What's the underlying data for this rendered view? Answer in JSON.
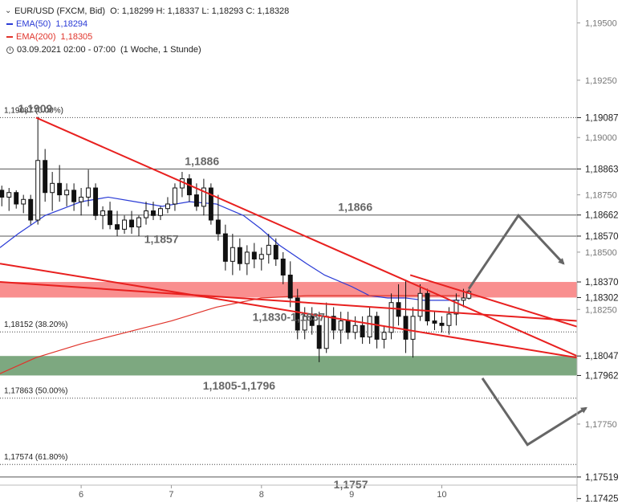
{
  "legend": {
    "symbol": "EUR/USD (FXCM, Bid)",
    "ohlc": "O: 1,18299  H: 1,18337  L: 1,18293  C: 1,18328",
    "ema50_label": "EMA(50)",
    "ema50_value": "1,18294",
    "ema200_label": "EMA(200)",
    "ema200_value": "1,18305",
    "period": "03.09.2021 02:00 - 07:00",
    "interval": "(1 Woche, 1 Stunde)"
  },
  "colors": {
    "ema50": "#2a3bd6",
    "ema200": "#e0342b",
    "trendline": "#e8201f",
    "resistance_zone": "#f87b7b",
    "support_zone": "#6f9e72",
    "arrow": "#666666",
    "candle": "#111111"
  },
  "chart_data": {
    "type": "candlestick",
    "instrument": "EUR/USD",
    "y_axis": {
      "range": [
        1.1741,
        1.196
      ],
      "ticks": [
        "1,19500",
        "1,19250",
        "1,19000",
        "1,18750",
        "1,18500",
        "1,18250",
        "1,17750"
      ]
    },
    "x_axis": {
      "range": [
        5.1,
        11.5
      ],
      "ticks": [
        {
          "x": 6,
          "label": "6"
        },
        {
          "x": 7,
          "label": "7"
        },
        {
          "x": 8,
          "label": "8"
        },
        {
          "x": 9,
          "label": "9"
        },
        {
          "x": 10,
          "label": "10"
        }
      ]
    },
    "price_markers": [
      {
        "value": 1.19087,
        "label": "1,19087",
        "style": "dark"
      },
      {
        "value": 1.18863,
        "label": "1,18863",
        "style": "dark"
      },
      {
        "value": 1.18662,
        "label": "1,18662",
        "style": "dark"
      },
      {
        "value": 1.1857,
        "label": "1,18570",
        "style": "dark"
      },
      {
        "value": 1.1837,
        "label": "1,18370",
        "style": "dark"
      },
      {
        "value": 1.18302,
        "label": "1,18302",
        "style": "dark"
      },
      {
        "value": 1.18047,
        "label": "1,18047",
        "style": "dark"
      },
      {
        "value": 1.17962,
        "label": "1,17962",
        "style": "dark"
      },
      {
        "value": 1.17519,
        "label": "1,17519",
        "style": "dark"
      },
      {
        "value": 1.17425,
        "label": "1,17425",
        "style": "dark"
      }
    ],
    "horizontal_lines": [
      {
        "value": 1.19087,
        "style": "dotted"
      },
      {
        "value": 1.18863,
        "style": "solid"
      },
      {
        "value": 1.18662,
        "style": "solid"
      },
      {
        "value": 1.1857,
        "style": "solid"
      },
      {
        "value": 1.18152,
        "style": "dotted"
      },
      {
        "value": 1.17863,
        "style": "dotted"
      },
      {
        "value": 1.17574,
        "style": "dotted"
      },
      {
        "value": 1.17519,
        "style": "solid"
      },
      {
        "value": 1.17425,
        "style": "solid"
      }
    ],
    "fib_labels": [
      {
        "value": 1.19087,
        "text": "1,19087 (0.00%)"
      },
      {
        "value": 1.18152,
        "text": "1,18152 (38.20%)"
      },
      {
        "value": 1.17863,
        "text": "1,17863 (50.00%)"
      },
      {
        "value": 1.17574,
        "text": "1,17574 (61.80%)"
      }
    ],
    "zones": [
      {
        "name": "resistance",
        "from": 1.18302,
        "to": 1.1837
      },
      {
        "name": "support",
        "from": 1.17962,
        "to": 1.18047
      }
    ],
    "annotations": [
      {
        "text": "1,1909",
        "x": 5.3,
        "y": 1.1911
      },
      {
        "text": "1,1886",
        "x": 7.15,
        "y": 1.1888
      },
      {
        "text": "1,1866",
        "x": 8.85,
        "y": 1.1868
      },
      {
        "text": "1,1857",
        "x": 6.7,
        "y": 1.1854
      },
      {
        "text": "1,1830-1,1837",
        "x": 7.9,
        "y": 1.182
      },
      {
        "text": "1,1805-1,1796",
        "x": 7.35,
        "y": 1.179
      },
      {
        "text": "1,1757",
        "x": 8.8,
        "y": 1.1747
      }
    ],
    "trendlines": [
      {
        "from": [
          5.5,
          1.19087
        ],
        "to": [
          11.5,
          1.18047
        ]
      },
      {
        "from": [
          5.1,
          1.1845
        ],
        "to": [
          11.5,
          1.1804
        ]
      },
      {
        "from": [
          5.1,
          1.1837
        ],
        "to": [
          11.5,
          1.182
        ]
      },
      {
        "from": [
          9.65,
          1.184
        ],
        "to": [
          11.5,
          1.18175
        ]
      }
    ],
    "scenario_arrows": [
      {
        "points": [
          [
            10.3,
            1.1834
          ],
          [
            10.85,
            1.1866
          ],
          [
            11.35,
            1.1845
          ]
        ]
      },
      {
        "points": [
          [
            10.45,
            1.1795
          ],
          [
            10.95,
            1.1766
          ],
          [
            11.6,
            1.1782
          ]
        ]
      }
    ],
    "series": [
      {
        "name": "EMA(50)",
        "x": [
          5.1,
          5.3,
          5.6,
          6.0,
          6.3,
          6.6,
          6.9,
          7.2,
          7.5,
          7.8,
          8.0,
          8.2,
          8.5,
          8.7,
          9.0,
          9.2,
          9.4,
          9.6,
          9.8,
          10.0,
          10.2
        ],
        "y": [
          1.1852,
          1.1858,
          1.1866,
          1.1872,
          1.1874,
          1.1872,
          1.187,
          1.1872,
          1.1871,
          1.1866,
          1.186,
          1.1853,
          1.1845,
          1.184,
          1.1835,
          1.1831,
          1.183,
          1.183,
          1.1829,
          1.1829,
          1.1829
        ]
      },
      {
        "name": "EMA(200)",
        "x": [
          5.1,
          5.5,
          6.0,
          6.5,
          7.0,
          7.5,
          8.0,
          8.5,
          9.0,
          9.5,
          10.0,
          10.2
        ],
        "y": [
          1.1797,
          1.1804,
          1.181,
          1.1815,
          1.182,
          1.1826,
          1.183,
          1.1831,
          1.1831,
          1.1831,
          1.1831,
          1.1831
        ]
      }
    ],
    "candles": [
      {
        "x": 5.12,
        "o": 1.1877,
        "h": 1.1879,
        "l": 1.187,
        "c": 1.1874
      },
      {
        "x": 5.2,
        "o": 1.1874,
        "h": 1.1878,
        "l": 1.1868,
        "c": 1.1876
      },
      {
        "x": 5.28,
        "o": 1.1876,
        "h": 1.1877,
        "l": 1.1869,
        "c": 1.1871
      },
      {
        "x": 5.36,
        "o": 1.1871,
        "h": 1.1875,
        "l": 1.1867,
        "c": 1.1873
      },
      {
        "x": 5.44,
        "o": 1.1873,
        "h": 1.1875,
        "l": 1.1862,
        "c": 1.1864
      },
      {
        "x": 5.52,
        "o": 1.1864,
        "h": 1.1909,
        "l": 1.1862,
        "c": 1.189
      },
      {
        "x": 5.6,
        "o": 1.189,
        "h": 1.1895,
        "l": 1.1872,
        "c": 1.1876
      },
      {
        "x": 5.68,
        "o": 1.1876,
        "h": 1.1885,
        "l": 1.1868,
        "c": 1.188
      },
      {
        "x": 5.76,
        "o": 1.188,
        "h": 1.1888,
        "l": 1.1872,
        "c": 1.1875
      },
      {
        "x": 5.84,
        "o": 1.1875,
        "h": 1.188,
        "l": 1.187,
        "c": 1.1877
      },
      {
        "x": 5.92,
        "o": 1.1877,
        "h": 1.188,
        "l": 1.1868,
        "c": 1.1872
      },
      {
        "x": 6.0,
        "o": 1.1872,
        "h": 1.1878,
        "l": 1.1866,
        "c": 1.1874
      },
      {
        "x": 6.08,
        "o": 1.1874,
        "h": 1.1886,
        "l": 1.187,
        "c": 1.1878
      },
      {
        "x": 6.16,
        "o": 1.1878,
        "h": 1.188,
        "l": 1.1864,
        "c": 1.1866
      },
      {
        "x": 6.24,
        "o": 1.1866,
        "h": 1.187,
        "l": 1.186,
        "c": 1.1868
      },
      {
        "x": 6.32,
        "o": 1.1868,
        "h": 1.1872,
        "l": 1.186,
        "c": 1.1862
      },
      {
        "x": 6.4,
        "o": 1.1862,
        "h": 1.1868,
        "l": 1.1857,
        "c": 1.186
      },
      {
        "x": 6.48,
        "o": 1.186,
        "h": 1.1866,
        "l": 1.1858,
        "c": 1.1864
      },
      {
        "x": 6.56,
        "o": 1.1864,
        "h": 1.1868,
        "l": 1.1858,
        "c": 1.1861
      },
      {
        "x": 6.64,
        "o": 1.1861,
        "h": 1.1866,
        "l": 1.1857,
        "c": 1.1865
      },
      {
        "x": 6.72,
        "o": 1.1865,
        "h": 1.1872,
        "l": 1.1862,
        "c": 1.1868
      },
      {
        "x": 6.8,
        "o": 1.1868,
        "h": 1.1872,
        "l": 1.1864,
        "c": 1.1866
      },
      {
        "x": 6.88,
        "o": 1.1866,
        "h": 1.187,
        "l": 1.1864,
        "c": 1.1869
      },
      {
        "x": 6.96,
        "o": 1.1869,
        "h": 1.1874,
        "l": 1.1867,
        "c": 1.1871
      },
      {
        "x": 7.04,
        "o": 1.1871,
        "h": 1.188,
        "l": 1.1868,
        "c": 1.1878
      },
      {
        "x": 7.12,
        "o": 1.1878,
        "h": 1.1885,
        "l": 1.1874,
        "c": 1.1882
      },
      {
        "x": 7.2,
        "o": 1.1882,
        "h": 1.1884,
        "l": 1.1872,
        "c": 1.1875
      },
      {
        "x": 7.28,
        "o": 1.1875,
        "h": 1.188,
        "l": 1.1868,
        "c": 1.187
      },
      {
        "x": 7.36,
        "o": 1.187,
        "h": 1.1882,
        "l": 1.1866,
        "c": 1.1878
      },
      {
        "x": 7.44,
        "o": 1.1878,
        "h": 1.188,
        "l": 1.1862,
        "c": 1.1864
      },
      {
        "x": 7.52,
        "o": 1.1864,
        "h": 1.1875,
        "l": 1.1855,
        "c": 1.1858
      },
      {
        "x": 7.6,
        "o": 1.1858,
        "h": 1.1862,
        "l": 1.1842,
        "c": 1.1846
      },
      {
        "x": 7.68,
        "o": 1.1846,
        "h": 1.1858,
        "l": 1.184,
        "c": 1.1852
      },
      {
        "x": 7.76,
        "o": 1.1852,
        "h": 1.1856,
        "l": 1.1842,
        "c": 1.1845
      },
      {
        "x": 7.84,
        "o": 1.1845,
        "h": 1.1853,
        "l": 1.184,
        "c": 1.185
      },
      {
        "x": 7.92,
        "o": 1.185,
        "h": 1.1854,
        "l": 1.1843,
        "c": 1.1847
      },
      {
        "x": 8.0,
        "o": 1.1847,
        "h": 1.1852,
        "l": 1.1842,
        "c": 1.1849
      },
      {
        "x": 8.08,
        "o": 1.1849,
        "h": 1.1858,
        "l": 1.1845,
        "c": 1.1853
      },
      {
        "x": 8.16,
        "o": 1.1853,
        "h": 1.1856,
        "l": 1.1844,
        "c": 1.1847
      },
      {
        "x": 8.24,
        "o": 1.1847,
        "h": 1.185,
        "l": 1.1836,
        "c": 1.184
      },
      {
        "x": 8.32,
        "o": 1.184,
        "h": 1.1846,
        "l": 1.1826,
        "c": 1.183
      },
      {
        "x": 8.4,
        "o": 1.183,
        "h": 1.1834,
        "l": 1.1812,
        "c": 1.1816
      },
      {
        "x": 8.48,
        "o": 1.1816,
        "h": 1.1826,
        "l": 1.1812,
        "c": 1.1822
      },
      {
        "x": 8.56,
        "o": 1.1822,
        "h": 1.1826,
        "l": 1.1814,
        "c": 1.1818
      },
      {
        "x": 8.64,
        "o": 1.1818,
        "h": 1.1824,
        "l": 1.1802,
        "c": 1.1808
      },
      {
        "x": 8.72,
        "o": 1.1808,
        "h": 1.1828,
        "l": 1.1806,
        "c": 1.1822
      },
      {
        "x": 8.8,
        "o": 1.1822,
        "h": 1.1826,
        "l": 1.1812,
        "c": 1.1816
      },
      {
        "x": 8.88,
        "o": 1.1816,
        "h": 1.1824,
        "l": 1.181,
        "c": 1.182
      },
      {
        "x": 8.96,
        "o": 1.182,
        "h": 1.1824,
        "l": 1.1812,
        "c": 1.1815
      },
      {
        "x": 9.04,
        "o": 1.1815,
        "h": 1.1822,
        "l": 1.1812,
        "c": 1.1818
      },
      {
        "x": 9.12,
        "o": 1.1818,
        "h": 1.1822,
        "l": 1.181,
        "c": 1.1813
      },
      {
        "x": 9.2,
        "o": 1.1813,
        "h": 1.1826,
        "l": 1.181,
        "c": 1.1822
      },
      {
        "x": 9.28,
        "o": 1.1822,
        "h": 1.1824,
        "l": 1.1808,
        "c": 1.1812
      },
      {
        "x": 9.36,
        "o": 1.1812,
        "h": 1.1818,
        "l": 1.1808,
        "c": 1.1815
      },
      {
        "x": 9.44,
        "o": 1.1815,
        "h": 1.1832,
        "l": 1.1812,
        "c": 1.1828
      },
      {
        "x": 9.52,
        "o": 1.1828,
        "h": 1.1836,
        "l": 1.1818,
        "c": 1.1822
      },
      {
        "x": 9.6,
        "o": 1.1822,
        "h": 1.1838,
        "l": 1.1806,
        "c": 1.1812
      },
      {
        "x": 9.68,
        "o": 1.1812,
        "h": 1.1826,
        "l": 1.1804,
        "c": 1.1822
      },
      {
        "x": 9.76,
        "o": 1.1822,
        "h": 1.1836,
        "l": 1.182,
        "c": 1.1832
      },
      {
        "x": 9.84,
        "o": 1.1832,
        "h": 1.1834,
        "l": 1.1818,
        "c": 1.182
      },
      {
        "x": 9.92,
        "o": 1.182,
        "h": 1.1824,
        "l": 1.1816,
        "c": 1.1819
      },
      {
        "x": 10.0,
        "o": 1.1819,
        "h": 1.1822,
        "l": 1.1815,
        "c": 1.1818
      },
      {
        "x": 10.08,
        "o": 1.1818,
        "h": 1.1826,
        "l": 1.1814,
        "c": 1.1823
      },
      {
        "x": 10.16,
        "o": 1.1823,
        "h": 1.1832,
        "l": 1.1818,
        "c": 1.1829
      },
      {
        "x": 10.24,
        "o": 1.1829,
        "h": 1.1834,
        "l": 1.1826,
        "c": 1.183
      },
      {
        "x": 10.3,
        "o": 1.18299,
        "h": 1.18337,
        "l": 1.18293,
        "c": 1.18328
      }
    ]
  }
}
